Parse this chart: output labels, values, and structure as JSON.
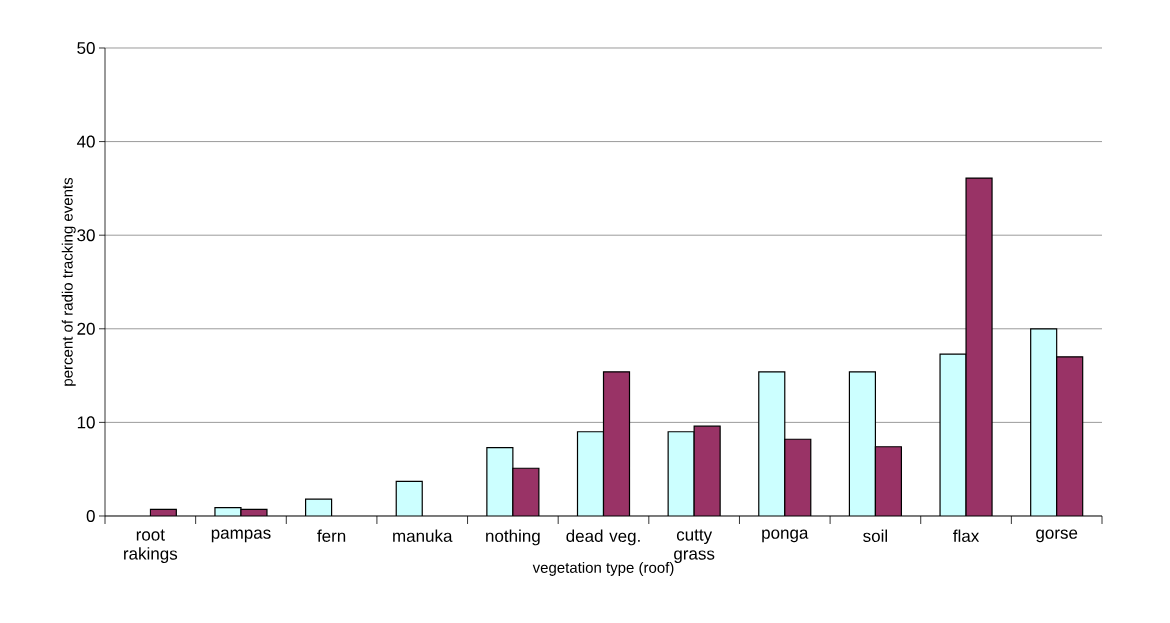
{
  "chart_data": {
    "type": "bar",
    "xlabel": "vegetation type (roof)",
    "ylabel": "percent of radio tracking events",
    "categories": [
      "root rakings",
      "pampas",
      "fern",
      "manuka",
      "nothing",
      "dead veg.",
      "cutty grass",
      "ponga",
      "soil",
      "flax",
      "gorse"
    ],
    "series": [
      {
        "color": "#ccffff",
        "values": [
          null,
          0.9,
          1.8,
          3.7,
          7.3,
          9.0,
          9.0,
          15.4,
          15.4,
          17.3,
          20.0
        ]
      },
      {
        "color": "#993366",
        "values": [
          0.7,
          0.7,
          null,
          null,
          5.1,
          15.4,
          9.6,
          8.2,
          7.4,
          36.1,
          17.0
        ]
      }
    ],
    "ylim": [
      0,
      50
    ],
    "yticks": [
      0,
      10,
      20,
      30,
      40,
      50
    ],
    "grid": "y"
  }
}
